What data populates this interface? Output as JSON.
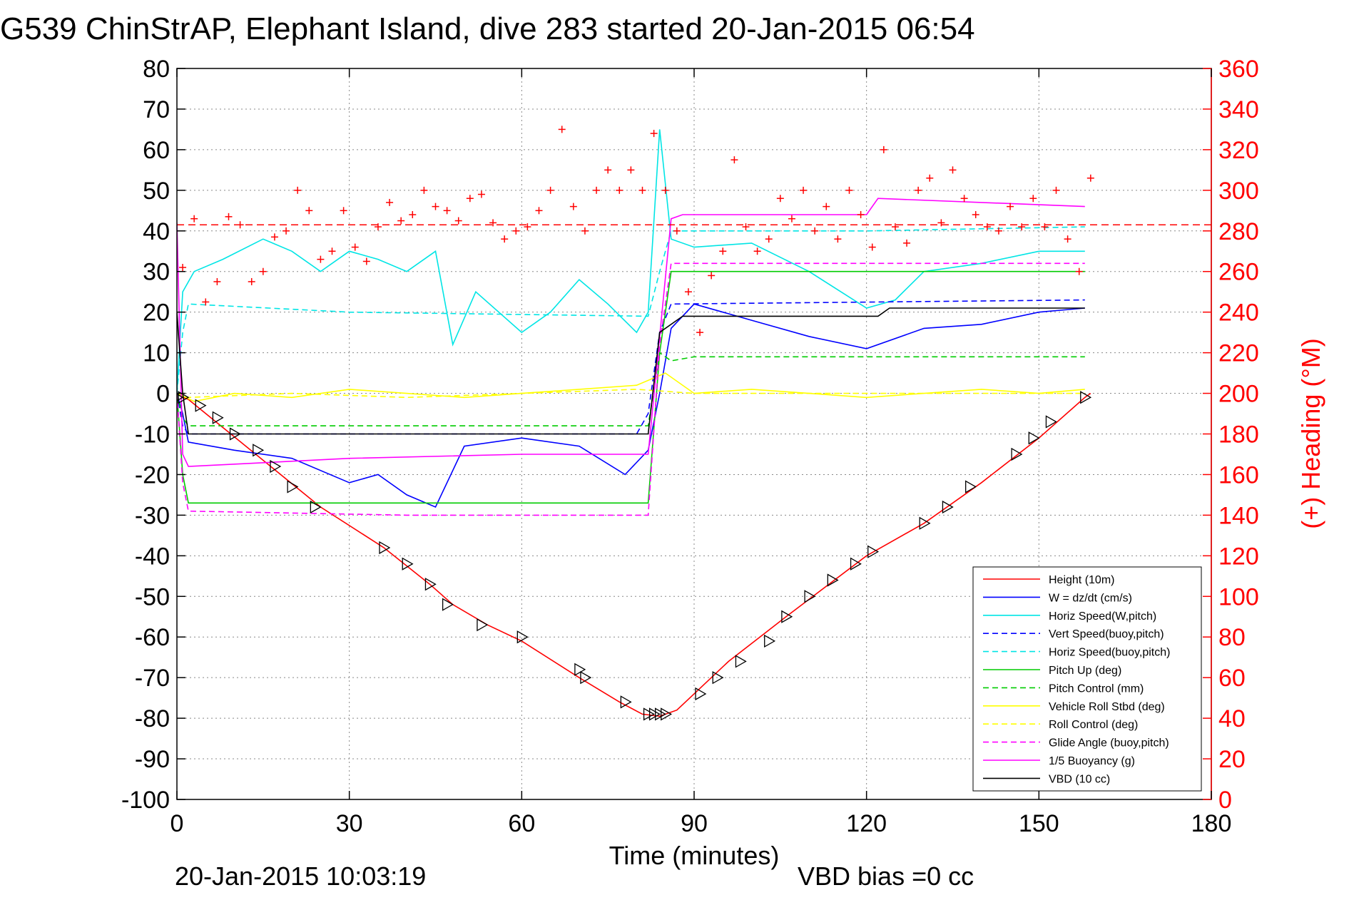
{
  "chart_data": {
    "type": "line",
    "title": "G539 ChinStrAP, Elephant Island, dive 283 started 20-Jan-2015 06:54",
    "xlabel": "Time (minutes)",
    "ylabel": "",
    "y2label": "(+) Heading (°M)",
    "xlim": [
      0,
      180
    ],
    "ylim": [
      -100,
      80
    ],
    "y2lim": [
      0,
      360
    ],
    "xticks": [
      "0",
      "30",
      "60",
      "90",
      "120",
      "150",
      "180"
    ],
    "yticks": [
      "80",
      "70",
      "60",
      "50",
      "40",
      "30",
      "20",
      "10",
      "0",
      "-10",
      "-20",
      "-30",
      "-40",
      "-50",
      "-60",
      "-70",
      "-80",
      "-90",
      "-100"
    ],
    "y2ticks": [
      "360",
      "340",
      "320",
      "300",
      "280",
      "260",
      "240",
      "220",
      "200",
      "180",
      "160",
      "140",
      "120",
      "100",
      "80",
      "60",
      "40",
      "20",
      "0"
    ],
    "grid": true,
    "legend_position": "bottom-right",
    "footer_left": "20-Jan-2015 10:03:19",
    "footer_right": "VBD bias =0 cc",
    "colors": {
      "height": "#ff0000",
      "w": "#0000ff",
      "hspeed": "#00e5e5",
      "pitch": "#00cc00",
      "roll": "#ffff00",
      "glide": "#ff00ff",
      "vbd": "#000000",
      "heading": "#ff0000"
    },
    "series": [
      {
        "name": "Height (10m)",
        "color": "#ff0000",
        "dash": "",
        "x": [
          0,
          1,
          2,
          25,
          36,
          44,
          48,
          54,
          60,
          70,
          77,
          81,
          84,
          87,
          90,
          96,
          106,
          120,
          130,
          140,
          150,
          158,
          159
        ],
        "y": [
          0,
          -1,
          -1.5,
          -28,
          -38,
          -47,
          -52,
          -57,
          -61,
          -70,
          -76,
          -79,
          -79.5,
          -78,
          -74,
          -66,
          -55,
          -40,
          -32,
          -22,
          -11,
          -1,
          0
        ]
      },
      {
        "name": "W = dz/dt (cm/s)",
        "color": "#0000ff",
        "dash": "",
        "x": [
          0,
          1,
          2,
          10,
          20,
          30,
          35,
          40,
          45,
          50,
          60,
          70,
          78,
          82,
          84,
          86,
          90,
          100,
          110,
          120,
          130,
          140,
          150,
          158
        ],
        "y": [
          0,
          -5,
          -12,
          -14,
          -16,
          -22,
          -20,
          -25,
          -28,
          -13,
          -11,
          -13,
          -20,
          -14,
          0,
          16,
          22,
          18,
          14,
          11,
          16,
          17,
          20,
          21
        ]
      },
      {
        "name": "Horiz Speed(W,pitch)",
        "color": "#00e5e5",
        "dash": "",
        "x": [
          0,
          1,
          3,
          8,
          15,
          20,
          25,
          30,
          35,
          40,
          45,
          48,
          52,
          60,
          65,
          70,
          75,
          80,
          82,
          84,
          86,
          90,
          100,
          110,
          120,
          125,
          130,
          140,
          150,
          158
        ],
        "y": [
          0,
          25,
          30,
          33,
          38,
          35,
          30,
          35,
          33,
          30,
          35,
          12,
          25,
          15,
          20,
          28,
          22,
          15,
          20,
          65,
          38,
          36,
          37,
          30,
          21,
          23,
          30,
          32,
          35,
          35
        ]
      },
      {
        "name": "Vert Speed(buoy,pitch)",
        "color": "#0000ff",
        "dash": "8,5",
        "x": [
          0,
          1,
          2,
          80,
          82,
          84,
          86,
          158
        ],
        "y": [
          0,
          -8,
          -10,
          -10,
          -5,
          15,
          22,
          23
        ]
      },
      {
        "name": "Horiz Speed(buoy,pitch)",
        "color": "#00e5e5",
        "dash": "8,5",
        "x": [
          0,
          1,
          2,
          30,
          82,
          84,
          86,
          120,
          158
        ],
        "y": [
          0,
          15,
          22,
          20,
          19,
          30,
          40,
          40,
          41
        ]
      },
      {
        "name": "Pitch Up (deg)",
        "color": "#00cc00",
        "dash": "",
        "x": [
          0,
          1,
          2,
          40,
          82,
          84,
          86,
          158
        ],
        "y": [
          0,
          -20,
          -27,
          -27,
          -27,
          10,
          30,
          30
        ]
      },
      {
        "name": "Pitch Control (mm)",
        "color": "#00cc00",
        "dash": "8,5",
        "x": [
          0,
          1,
          2,
          82,
          84,
          86,
          90,
          158
        ],
        "y": [
          0,
          -6,
          -8,
          -8,
          10,
          8,
          9,
          9
        ]
      },
      {
        "name": "Vehicle Roll Stbd (deg)",
        "color": "#ffff00",
        "dash": "",
        "x": [
          0,
          3,
          10,
          20,
          30,
          40,
          50,
          60,
          70,
          80,
          85,
          90,
          100,
          110,
          120,
          130,
          140,
          150,
          158
        ],
        "y": [
          0,
          -2,
          0,
          -1,
          1,
          0,
          -1,
          0,
          1,
          2,
          5,
          0,
          1,
          0,
          -1,
          0,
          1,
          0,
          1
        ]
      },
      {
        "name": "Roll Control (deg)",
        "color": "#ffff00",
        "dash": "8,5",
        "x": [
          0,
          2,
          20,
          40,
          60,
          80,
          90,
          120,
          158
        ],
        "y": [
          0,
          -1,
          0,
          -1,
          0,
          1,
          0,
          0,
          0
        ]
      },
      {
        "name": "Glide Angle (buoy,pitch)",
        "color": "#ff00ff",
        "dash": "8,5",
        "x": [
          0,
          1,
          2,
          40,
          82,
          84,
          86,
          158
        ],
        "y": [
          0,
          -22,
          -29,
          -30,
          -30,
          12,
          32,
          32
        ]
      },
      {
        "name": "1/5 Buoyancy (g)",
        "color": "#ff00ff",
        "dash": "",
        "x": [
          0,
          1,
          2,
          30,
          60,
          82,
          86,
          88,
          120,
          122,
          158
        ],
        "y": [
          42,
          -15,
          -18,
          -16,
          -15,
          -15,
          43,
          44,
          44,
          48,
          46
        ]
      },
      {
        "name": "VBD (10 cc)",
        "color": "#000000",
        "dash": "",
        "x": [
          0,
          1,
          2,
          82,
          84,
          88,
          122,
          124,
          158
        ],
        "y": [
          20,
          0,
          -10,
          -10,
          15,
          19,
          19,
          21,
          21
        ]
      }
    ],
    "heading": {
      "name": "Heading (°M)",
      "marker": "+",
      "color": "#ff0000",
      "mean_line": 283,
      "x": [
        1,
        3,
        5,
        7,
        9,
        11,
        13,
        15,
        17,
        19,
        21,
        23,
        25,
        27,
        29,
        31,
        33,
        35,
        37,
        39,
        41,
        43,
        45,
        47,
        49,
        51,
        53,
        55,
        57,
        59,
        61,
        63,
        65,
        67,
        69,
        71,
        73,
        75,
        77,
        79,
        81,
        83,
        85,
        87,
        89,
        91,
        93,
        95,
        97,
        99,
        101,
        103,
        105,
        107,
        109,
        111,
        113,
        115,
        117,
        119,
        121,
        123,
        125,
        127,
        129,
        131,
        133,
        135,
        137,
        139,
        141,
        143,
        145,
        147,
        149,
        151,
        153,
        155,
        157,
        159
      ],
      "y": [
        262,
        286,
        245,
        255,
        287,
        283,
        255,
        260,
        277,
        280,
        300,
        290,
        266,
        270,
        290,
        272,
        265,
        282,
        294,
        285,
        288,
        300,
        292,
        290,
        285,
        296,
        298,
        284,
        276,
        280,
        282,
        290,
        300,
        330,
        292,
        280,
        300,
        310,
        300,
        310,
        300,
        328,
        300,
        280,
        250,
        230,
        258,
        270,
        315,
        282,
        270,
        276,
        296,
        286,
        300,
        280,
        292,
        276,
        300,
        288,
        272,
        320,
        282,
        274,
        300,
        306,
        284,
        310,
        296,
        288,
        282,
        280,
        292,
        282,
        296,
        282,
        300,
        276,
        260,
        306
      ]
    },
    "vbd_markers": {
      "name": "VBD markers",
      "marker": "triangle-right",
      "color": "#000000",
      "x": [
        0,
        1,
        4,
        7,
        10,
        14,
        17,
        20,
        24,
        36,
        40,
        44,
        47,
        53,
        60,
        70,
        71,
        78,
        82,
        83,
        84,
        85,
        91,
        94,
        98,
        103,
        106,
        110,
        114,
        118,
        121,
        130,
        134,
        138,
        146,
        149,
        152,
        158
      ],
      "y": [
        -1,
        -1,
        -3,
        -6,
        -10,
        -14,
        -18,
        -23,
        -28,
        -38,
        -42,
        -47,
        -52,
        -57,
        -60,
        -68,
        -70,
        -76,
        -79,
        -79,
        -79,
        -79,
        -74,
        -70,
        -66,
        -61,
        -55,
        -50,
        -46,
        -42,
        -39,
        -32,
        -28,
        -23,
        -15,
        -11,
        -7,
        -1
      ]
    }
  }
}
